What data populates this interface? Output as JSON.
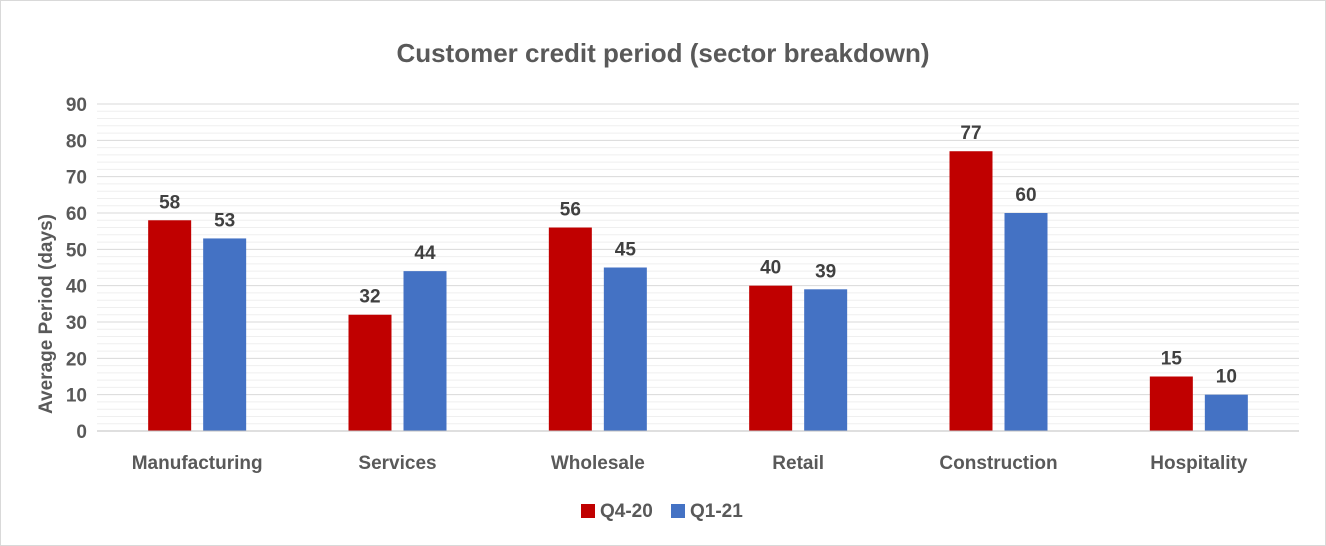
{
  "chart_data": {
    "type": "bar",
    "title": "Customer credit period (sector breakdown)",
    "xlabel": "",
    "ylabel": "Average Period (days)",
    "ylim": [
      0,
      90
    ],
    "yticks": [
      0,
      10,
      20,
      30,
      40,
      50,
      60,
      70,
      80,
      90
    ],
    "categories": [
      "Manufacturing",
      "Services",
      "Wholesale",
      "Retail",
      "Construction",
      "Hospitality"
    ],
    "series": [
      {
        "name": "Q4-20",
        "color": "#c00000",
        "values": [
          58,
          32,
          56,
          40,
          77,
          15
        ]
      },
      {
        "name": "Q1-21",
        "color": "#4472c4",
        "values": [
          53,
          44,
          45,
          39,
          60,
          10
        ]
      }
    ],
    "grid": true,
    "legend_position": "bottom",
    "data_labels": true
  }
}
